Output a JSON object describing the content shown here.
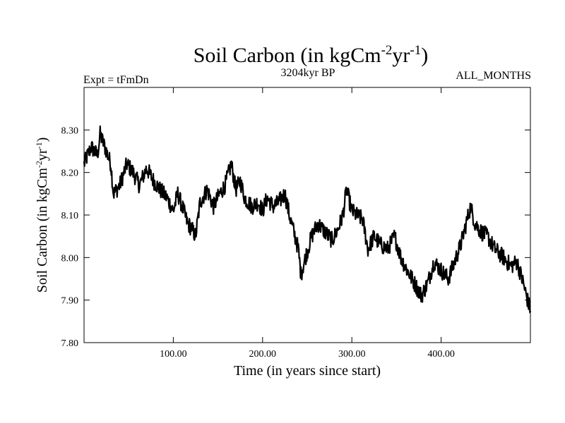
{
  "chart_data": {
    "type": "line",
    "title": {
      "base": "Soil Carbon (in kgCm",
      "sup1": "-2",
      "mid": "yr",
      "sup2": "-1",
      "end": ")"
    },
    "subtitle_left": "Expt = tFmDn",
    "subtitle_center": "3204kyr BP",
    "subtitle_right": "ALL_MONTHS",
    "xlabel": "Time (in years since start)",
    "ylabel": {
      "base": "Soil Carbon (in kgCm",
      "sup1": "-2",
      "mid": "yr",
      "sup2": "-1",
      "end": ")"
    },
    "xlim": [
      0,
      500
    ],
    "ylim": [
      7.8,
      8.4
    ],
    "xticks": [
      100,
      200,
      300,
      400
    ],
    "xtick_labels": [
      "100.00",
      "200.00",
      "300.00",
      "400.00"
    ],
    "yticks": [
      7.8,
      7.9,
      8.0,
      8.1,
      8.2,
      8.3
    ],
    "ytick_labels": [
      "7.80",
      "7.90",
      "8.00",
      "8.10",
      "8.20",
      "8.30"
    ],
    "series": [
      {
        "name": "Soil Carbon",
        "color": "#000000",
        "x": [
          0,
          8,
          15,
          18,
          25,
          30,
          33,
          40,
          48,
          55,
          62,
          70,
          78,
          85,
          93,
          100,
          105,
          110,
          116,
          120,
          125,
          130,
          138,
          145,
          152,
          158,
          165,
          170,
          175,
          180,
          188,
          195,
          200,
          205,
          212,
          218,
          225,
          230,
          235,
          240,
          243,
          248,
          255,
          262,
          270,
          278,
          285,
          290,
          294,
          300,
          305,
          312,
          318,
          325,
          332,
          340,
          348,
          355,
          362,
          370,
          378,
          385,
          392,
          400,
          408,
          415,
          422,
          428,
          433,
          438,
          445,
          452,
          460,
          470,
          478,
          485,
          492,
          498,
          500
        ],
        "y": [
          8.22,
          8.26,
          8.24,
          8.29,
          8.25,
          8.22,
          8.15,
          8.17,
          8.22,
          8.2,
          8.17,
          8.21,
          8.18,
          8.16,
          8.14,
          8.11,
          8.15,
          8.12,
          8.08,
          8.07,
          8.05,
          8.13,
          8.16,
          8.12,
          8.15,
          8.17,
          8.22,
          8.16,
          8.18,
          8.14,
          8.12,
          8.13,
          8.11,
          8.14,
          8.12,
          8.13,
          8.15,
          8.1,
          8.06,
          8.02,
          7.96,
          8.0,
          8.05,
          8.08,
          8.06,
          8.04,
          8.07,
          8.1,
          8.16,
          8.11,
          8.1,
          8.09,
          8.02,
          8.05,
          8.03,
          8.02,
          8.05,
          8.0,
          7.97,
          7.94,
          7.91,
          7.94,
          7.99,
          7.97,
          7.95,
          7.99,
          8.03,
          8.08,
          8.12,
          8.08,
          8.06,
          8.05,
          8.02,
          8.0,
          7.98,
          7.99,
          7.94,
          7.89,
          7.88
        ]
      }
    ]
  }
}
